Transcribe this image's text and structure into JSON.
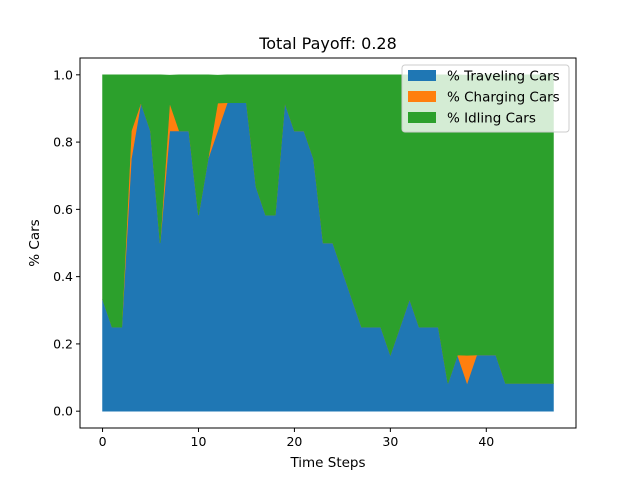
{
  "chart_data": {
    "type": "area",
    "title": "Total Payoff: 0.28",
    "xlabel": "Time Steps",
    "ylabel": "% Cars",
    "xlim": [
      -2.35,
      49.35
    ],
    "ylim": [
      -0.05,
      1.05
    ],
    "xticks": [
      0,
      10,
      20,
      30,
      40
    ],
    "yticks": [
      0.0,
      0.2,
      0.4,
      0.6,
      0.8,
      1.0
    ],
    "grid": false,
    "legend_position": "top-right",
    "stacked": true,
    "x": [
      0,
      1,
      2,
      3,
      4,
      5,
      6,
      7,
      8,
      9,
      10,
      11,
      12,
      13,
      14,
      15,
      16,
      17,
      18,
      19,
      20,
      21,
      22,
      23,
      24,
      25,
      26,
      27,
      28,
      29,
      30,
      31,
      32,
      33,
      34,
      35,
      36,
      37,
      38,
      39,
      40,
      41,
      42,
      43,
      44,
      45,
      46,
      47
    ],
    "series": [
      {
        "name": "% Traveling Cars",
        "color": "#1f77b4",
        "values": [
          0.333,
          0.25,
          0.25,
          0.75,
          0.917,
          0.833,
          0.5,
          0.833,
          0.833,
          0.833,
          0.583,
          0.75,
          0.833,
          0.917,
          0.917,
          0.917,
          0.667,
          0.583,
          0.583,
          0.917,
          0.833,
          0.833,
          0.75,
          0.5,
          0.5,
          0.417,
          0.333,
          0.25,
          0.25,
          0.25,
          0.167,
          0.25,
          0.333,
          0.25,
          0.25,
          0.25,
          0.083,
          0.167,
          0.083,
          0.167,
          0.167,
          0.167,
          0.083,
          0.083,
          0.083,
          0.083,
          0.083,
          0.083
        ]
      },
      {
        "name": "% Charging Cars",
        "color": "#ff7f0e",
        "values": [
          0,
          0,
          0,
          0.083,
          0,
          0,
          0,
          0.083,
          0,
          0,
          0,
          0,
          0.083,
          0,
          0,
          0,
          0,
          0,
          0,
          0,
          0,
          0,
          0,
          0,
          0,
          0,
          0,
          0,
          0,
          0,
          0,
          0,
          0,
          0,
          0,
          0,
          0,
          0,
          0.083,
          0,
          0,
          0,
          0,
          0,
          0,
          0,
          0,
          0
        ]
      },
      {
        "name": "% Idling Cars",
        "color": "#2ca02c",
        "values": [
          0.667,
          0.75,
          0.75,
          0.167,
          0.083,
          0.167,
          0.5,
          0.083,
          0.167,
          0.167,
          0.417,
          0.25,
          0.083,
          0.083,
          0.083,
          0.083,
          0.333,
          0.417,
          0.417,
          0.083,
          0.167,
          0.167,
          0.25,
          0.5,
          0.5,
          0.583,
          0.667,
          0.75,
          0.75,
          0.75,
          0.833,
          0.75,
          0.667,
          0.75,
          0.75,
          0.75,
          0.917,
          0.833,
          0.833,
          0.833,
          0.833,
          0.833,
          0.917,
          0.917,
          0.917,
          0.917,
          0.917,
          0.917
        ]
      }
    ]
  }
}
